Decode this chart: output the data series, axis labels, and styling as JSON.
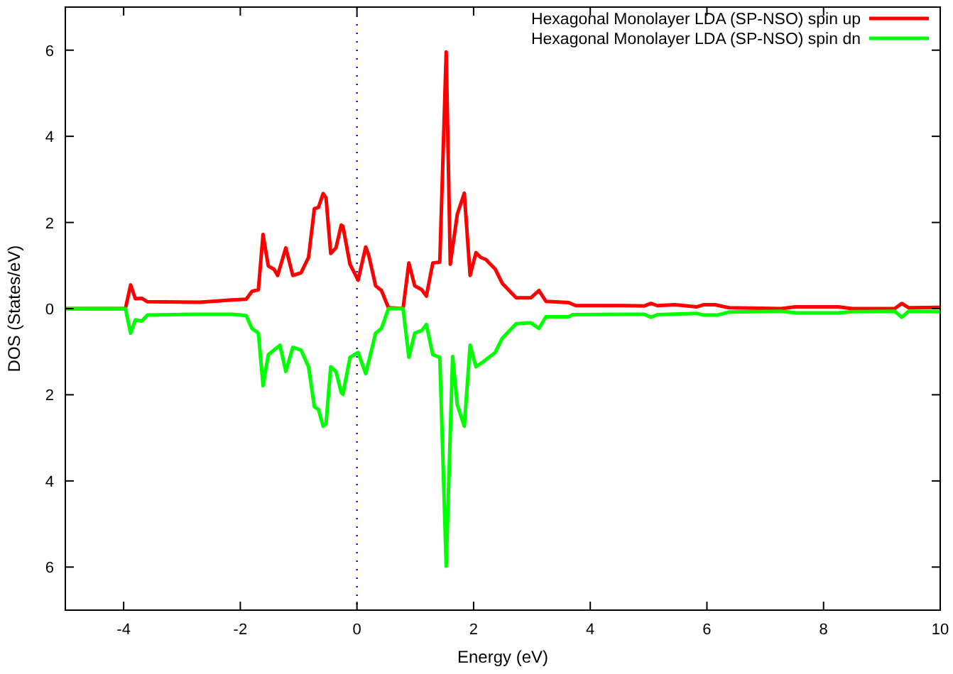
{
  "chart_data": {
    "type": "line",
    "xlabel": "Energy (eV)",
    "ylabel": "DOS (States/eV)",
    "xlim": [
      -5,
      10
    ],
    "xticks": [
      -4,
      -2,
      0,
      2,
      4,
      6,
      8,
      10
    ],
    "ylim": [
      -7,
      7
    ],
    "yticks": [
      {
        "value": -6,
        "label": "6"
      },
      {
        "value": -4,
        "label": "4"
      },
      {
        "value": -2,
        "label": "2"
      },
      0,
      2,
      4,
      6
    ],
    "grid": false,
    "legend": "top right",
    "marker": "none",
    "line_style": "solid",
    "ref_lines": [
      {
        "axis": "x",
        "value": 0,
        "color": "#0000ff",
        "line_style": "dotted"
      }
    ],
    "series": [
      {
        "name": "Hexagonal Monolayer LDA (SP-NSO) spin up",
        "color": "#ff0000",
        "x": [
          -5,
          -3.97,
          -3.88,
          -3.8,
          -3.69,
          -3.59,
          -2.7,
          -2.14,
          -1.9,
          -1.8,
          -1.69,
          -1.61,
          -1.52,
          -1.42,
          -1.36,
          -1.22,
          -1.1,
          -0.96,
          -0.83,
          -0.73,
          -0.66,
          -0.58,
          -0.53,
          -0.45,
          -0.36,
          -0.27,
          -0.24,
          -0.12,
          0.02,
          0.15,
          0.2,
          0.32,
          0.42,
          0.54,
          0.79,
          0.89,
          0.99,
          1.11,
          1.19,
          1.3,
          1.42,
          1.53,
          1.6,
          1.72,
          1.84,
          1.94,
          2.04,
          2.12,
          2.21,
          2.37,
          2.49,
          2.73,
          2.98,
          3.12,
          3.24,
          3.63,
          3.75,
          4.6,
          4.92,
          5.04,
          5.15,
          5.45,
          5.82,
          5.94,
          6.14,
          6.38,
          7.27,
          7.52,
          8.25,
          8.49,
          9.22,
          9.34,
          9.46,
          9.99
        ],
        "values": [
          0,
          0,
          0.55,
          0.23,
          0.24,
          0.16,
          0.15,
          0.2,
          0.22,
          0.4,
          0.44,
          1.72,
          0.99,
          0.91,
          0.77,
          1.41,
          0.77,
          0.83,
          1.19,
          2.32,
          2.35,
          2.67,
          2.57,
          1.28,
          1.41,
          1.94,
          1.91,
          1.03,
          0.66,
          1.43,
          1.25,
          0.53,
          0.42,
          0.02,
          0,
          1.06,
          0.53,
          0.44,
          0.29,
          1.06,
          1.08,
          5.96,
          1.03,
          2.19,
          2.68,
          0.77,
          1.3,
          1.19,
          1.14,
          0.92,
          0.59,
          0.25,
          0.25,
          0.42,
          0.17,
          0.14,
          0.07,
          0.07,
          0.06,
          0.12,
          0.07,
          0.09,
          0.04,
          0.09,
          0.09,
          0.02,
          0,
          0.04,
          0.04,
          0,
          0,
          0.12,
          0.02,
          0.03
        ]
      },
      {
        "name": "Hexagonal Monolayer LDA (SP-NSO) spin dn",
        "color": "#00ff00",
        "x": [
          -5,
          -3.97,
          -3.88,
          -3.8,
          -3.69,
          -3.59,
          -2.7,
          -2.14,
          -1.9,
          -1.8,
          -1.69,
          -1.61,
          -1.52,
          -1.42,
          -1.32,
          -1.22,
          -1.1,
          -0.96,
          -0.83,
          -0.73,
          -0.66,
          -0.58,
          -0.53,
          -0.45,
          -0.36,
          -0.27,
          -0.24,
          -0.12,
          0.02,
          0.15,
          0.32,
          0.42,
          0.54,
          0.79,
          0.89,
          0.99,
          1.11,
          1.19,
          1.3,
          1.42,
          1.53,
          1.64,
          1.72,
          1.84,
          1.94,
          2.04,
          2.16,
          2.37,
          2.49,
          2.73,
          2.98,
          3.12,
          3.24,
          3.63,
          3.7,
          4.6,
          4.92,
          5.04,
          5.15,
          5.82,
          5.94,
          6.18,
          6.38,
          7.27,
          7.52,
          8.25,
          8.49,
          9.22,
          9.34,
          9.46,
          9.99
        ],
        "values": [
          0,
          0,
          -0.57,
          -0.26,
          -0.29,
          -0.15,
          -0.13,
          -0.13,
          -0.16,
          -0.46,
          -0.57,
          -1.79,
          -1.07,
          -0.96,
          -0.85,
          -1.46,
          -0.9,
          -0.96,
          -1.35,
          -2.28,
          -2.34,
          -2.73,
          -2.67,
          -1.35,
          -1.46,
          -1.95,
          -1.99,
          -1.13,
          -1.02,
          -1.51,
          -0.57,
          -0.46,
          0,
          0,
          -1.13,
          -0.57,
          -0.51,
          -0.37,
          -1.07,
          -1.13,
          -5.98,
          -1.11,
          -2.23,
          -2.73,
          -0.85,
          -1.35,
          -1.24,
          -1.02,
          -0.69,
          -0.35,
          -0.33,
          -0.46,
          -0.19,
          -0.19,
          -0.14,
          -0.13,
          -0.13,
          -0.2,
          -0.14,
          -0.11,
          -0.15,
          -0.15,
          -0.08,
          -0.06,
          -0.1,
          -0.1,
          -0.07,
          -0.06,
          -0.2,
          -0.06,
          -0.07
        ]
      }
    ]
  }
}
